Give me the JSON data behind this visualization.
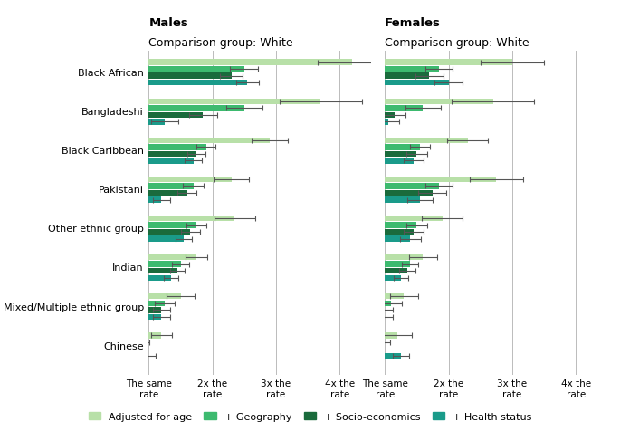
{
  "categories": [
    "Black African",
    "Bangladeshi",
    "Black Caribbean",
    "Pakistani",
    "Other ethnic group",
    "Indian",
    "Mixed/Multiple ethnic group",
    "Chinese"
  ],
  "colors": [
    "#b8e0a8",
    "#3dba6f",
    "#1a6b3c",
    "#1a9b8a"
  ],
  "legend_labels": [
    "Adjusted for age",
    "+ Geography",
    "+ Socio-economics",
    "+ Health status"
  ],
  "males": {
    "values": [
      [
        4.2,
        2.5,
        2.3,
        2.55
      ],
      [
        3.7,
        2.5,
        1.85,
        1.25
      ],
      [
        2.9,
        1.9,
        1.75,
        1.7
      ],
      [
        2.3,
        1.7,
        1.6,
        1.2
      ],
      [
        2.35,
        1.75,
        1.65,
        1.55
      ],
      [
        1.75,
        1.5,
        1.45,
        1.35
      ],
      [
        1.5,
        1.25,
        1.2,
        1.2
      ],
      [
        1.2,
        0.9,
        0.85,
        1.0
      ]
    ],
    "errors": [
      [
        0.55,
        0.22,
        0.18,
        0.18
      ],
      [
        0.65,
        0.28,
        0.22,
        0.22
      ],
      [
        0.28,
        0.15,
        0.14,
        0.14
      ],
      [
        0.28,
        0.16,
        0.15,
        0.13
      ],
      [
        0.32,
        0.16,
        0.15,
        0.13
      ],
      [
        0.17,
        0.13,
        0.12,
        0.11
      ],
      [
        0.22,
        0.16,
        0.13,
        0.13
      ],
      [
        0.16,
        0.11,
        0.1,
        0.11
      ]
    ]
  },
  "females": {
    "values": [
      [
        3.0,
        1.85,
        1.7,
        2.0
      ],
      [
        2.7,
        1.6,
        1.15,
        1.05
      ],
      [
        2.3,
        1.55,
        1.5,
        1.45
      ],
      [
        2.75,
        1.85,
        1.75,
        1.55
      ],
      [
        1.9,
        1.5,
        1.45,
        1.4
      ],
      [
        1.6,
        1.4,
        1.35,
        1.25
      ],
      [
        1.3,
        1.1,
        1.0,
        1.0
      ],
      [
        1.2,
        0.95,
        0.8,
        1.25
      ]
    ],
    "errors": [
      [
        0.5,
        0.22,
        0.22,
        0.22
      ],
      [
        0.65,
        0.28,
        0.17,
        0.17
      ],
      [
        0.32,
        0.16,
        0.16,
        0.16
      ],
      [
        0.42,
        0.22,
        0.22,
        0.2
      ],
      [
        0.32,
        0.16,
        0.16,
        0.16
      ],
      [
        0.22,
        0.13,
        0.13,
        0.11
      ],
      [
        0.22,
        0.16,
        0.13,
        0.13
      ],
      [
        0.22,
        0.13,
        0.11,
        0.13
      ]
    ]
  },
  "xlim": [
    1,
    4.5
  ],
  "xticks": [
    1,
    2,
    3,
    4
  ],
  "xticklabels": [
    "The same\nrate",
    "2x the\nrate",
    "3x the\nrate",
    "4x the\nrate"
  ],
  "title_males_line1": "Males",
  "title_males_line2": "Comparison group: White",
  "title_females_line1": "Females",
  "title_females_line2": "Comparison group: White",
  "bar_height": 0.15,
  "background_color": "#ffffff",
  "errorbar_color": "#555555",
  "vline_color": "#bbbbbb",
  "title_fontsize": 9,
  "tick_fontsize": 7.5,
  "label_fontsize": 8,
  "legend_fontsize": 8
}
